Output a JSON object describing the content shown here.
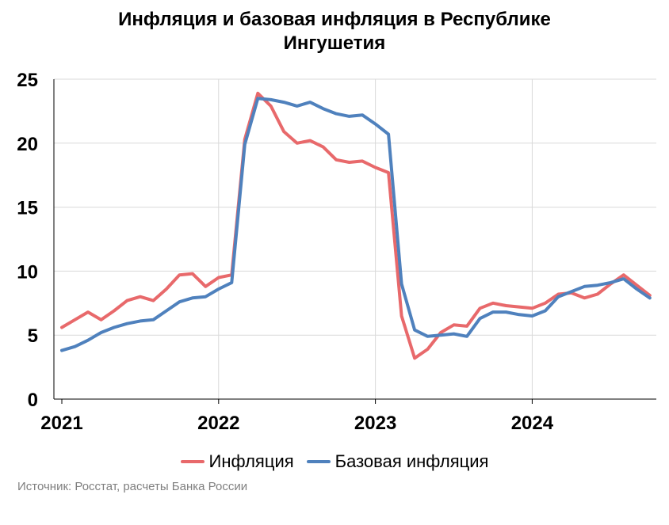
{
  "title_lines": [
    "Инфляция и базовая инфляция в Республике",
    "Ингушетия"
  ],
  "source": "Источник: Росстат, расчеты Банка России",
  "colors": {
    "inflation": "#e8696b",
    "core": "#4f81bd",
    "grid": "#d9d9d9",
    "axis": "#000000"
  },
  "chart_data": {
    "type": "line",
    "title": "Инфляция и базовая инфляция в Республике Ингушетия",
    "xlabel": "",
    "ylabel": "",
    "ylim": [
      0,
      25
    ],
    "yticks": [
      0,
      5,
      10,
      15,
      20,
      25
    ],
    "xticks": [
      "2021",
      "2022",
      "2023",
      "2024"
    ],
    "grid": true,
    "legend_position": "bottom",
    "x": [
      "2021-01",
      "2021-02",
      "2021-03",
      "2021-04",
      "2021-05",
      "2021-06",
      "2021-07",
      "2021-08",
      "2021-09",
      "2021-10",
      "2021-11",
      "2021-12",
      "2022-01",
      "2022-02",
      "2022-03",
      "2022-04",
      "2022-05",
      "2022-06",
      "2022-07",
      "2022-08",
      "2022-09",
      "2022-10",
      "2022-11",
      "2022-12",
      "2023-01",
      "2023-02",
      "2023-03",
      "2023-04",
      "2023-05",
      "2023-06",
      "2023-07",
      "2023-08",
      "2023-09",
      "2023-10",
      "2023-11",
      "2023-12",
      "2024-01",
      "2024-02",
      "2024-03",
      "2024-04",
      "2024-05",
      "2024-06",
      "2024-07",
      "2024-08",
      "2024-09",
      "2024-10"
    ],
    "series": [
      {
        "name": "Инфляция",
        "color": "#e8696b",
        "values": [
          5.6,
          6.2,
          6.8,
          6.2,
          6.9,
          7.7,
          8.0,
          7.7,
          8.6,
          9.7,
          9.8,
          8.8,
          9.5,
          9.7,
          20.3,
          23.9,
          22.9,
          20.9,
          20.0,
          20.2,
          19.7,
          18.7,
          18.5,
          18.6,
          18.1,
          17.7,
          6.5,
          3.2,
          3.9,
          5.2,
          5.8,
          5.7,
          7.1,
          7.5,
          7.3,
          7.2,
          7.1,
          7.5,
          8.2,
          8.3,
          7.9,
          8.2,
          9.0,
          9.7,
          8.9,
          8.1
        ]
      },
      {
        "name": "Базовая инфляция",
        "color": "#4f81bd",
        "values": [
          3.8,
          4.1,
          4.6,
          5.2,
          5.6,
          5.9,
          6.1,
          6.2,
          6.9,
          7.6,
          7.9,
          8.0,
          8.6,
          9.1,
          19.9,
          23.5,
          23.4,
          23.2,
          22.9,
          23.2,
          22.7,
          22.3,
          22.1,
          22.2,
          21.5,
          20.7,
          9.0,
          5.4,
          4.9,
          5.0,
          5.1,
          4.9,
          6.3,
          6.8,
          6.8,
          6.6,
          6.5,
          6.9,
          8.0,
          8.4,
          8.8,
          8.9,
          9.1,
          9.4,
          8.6,
          7.9
        ]
      }
    ]
  }
}
